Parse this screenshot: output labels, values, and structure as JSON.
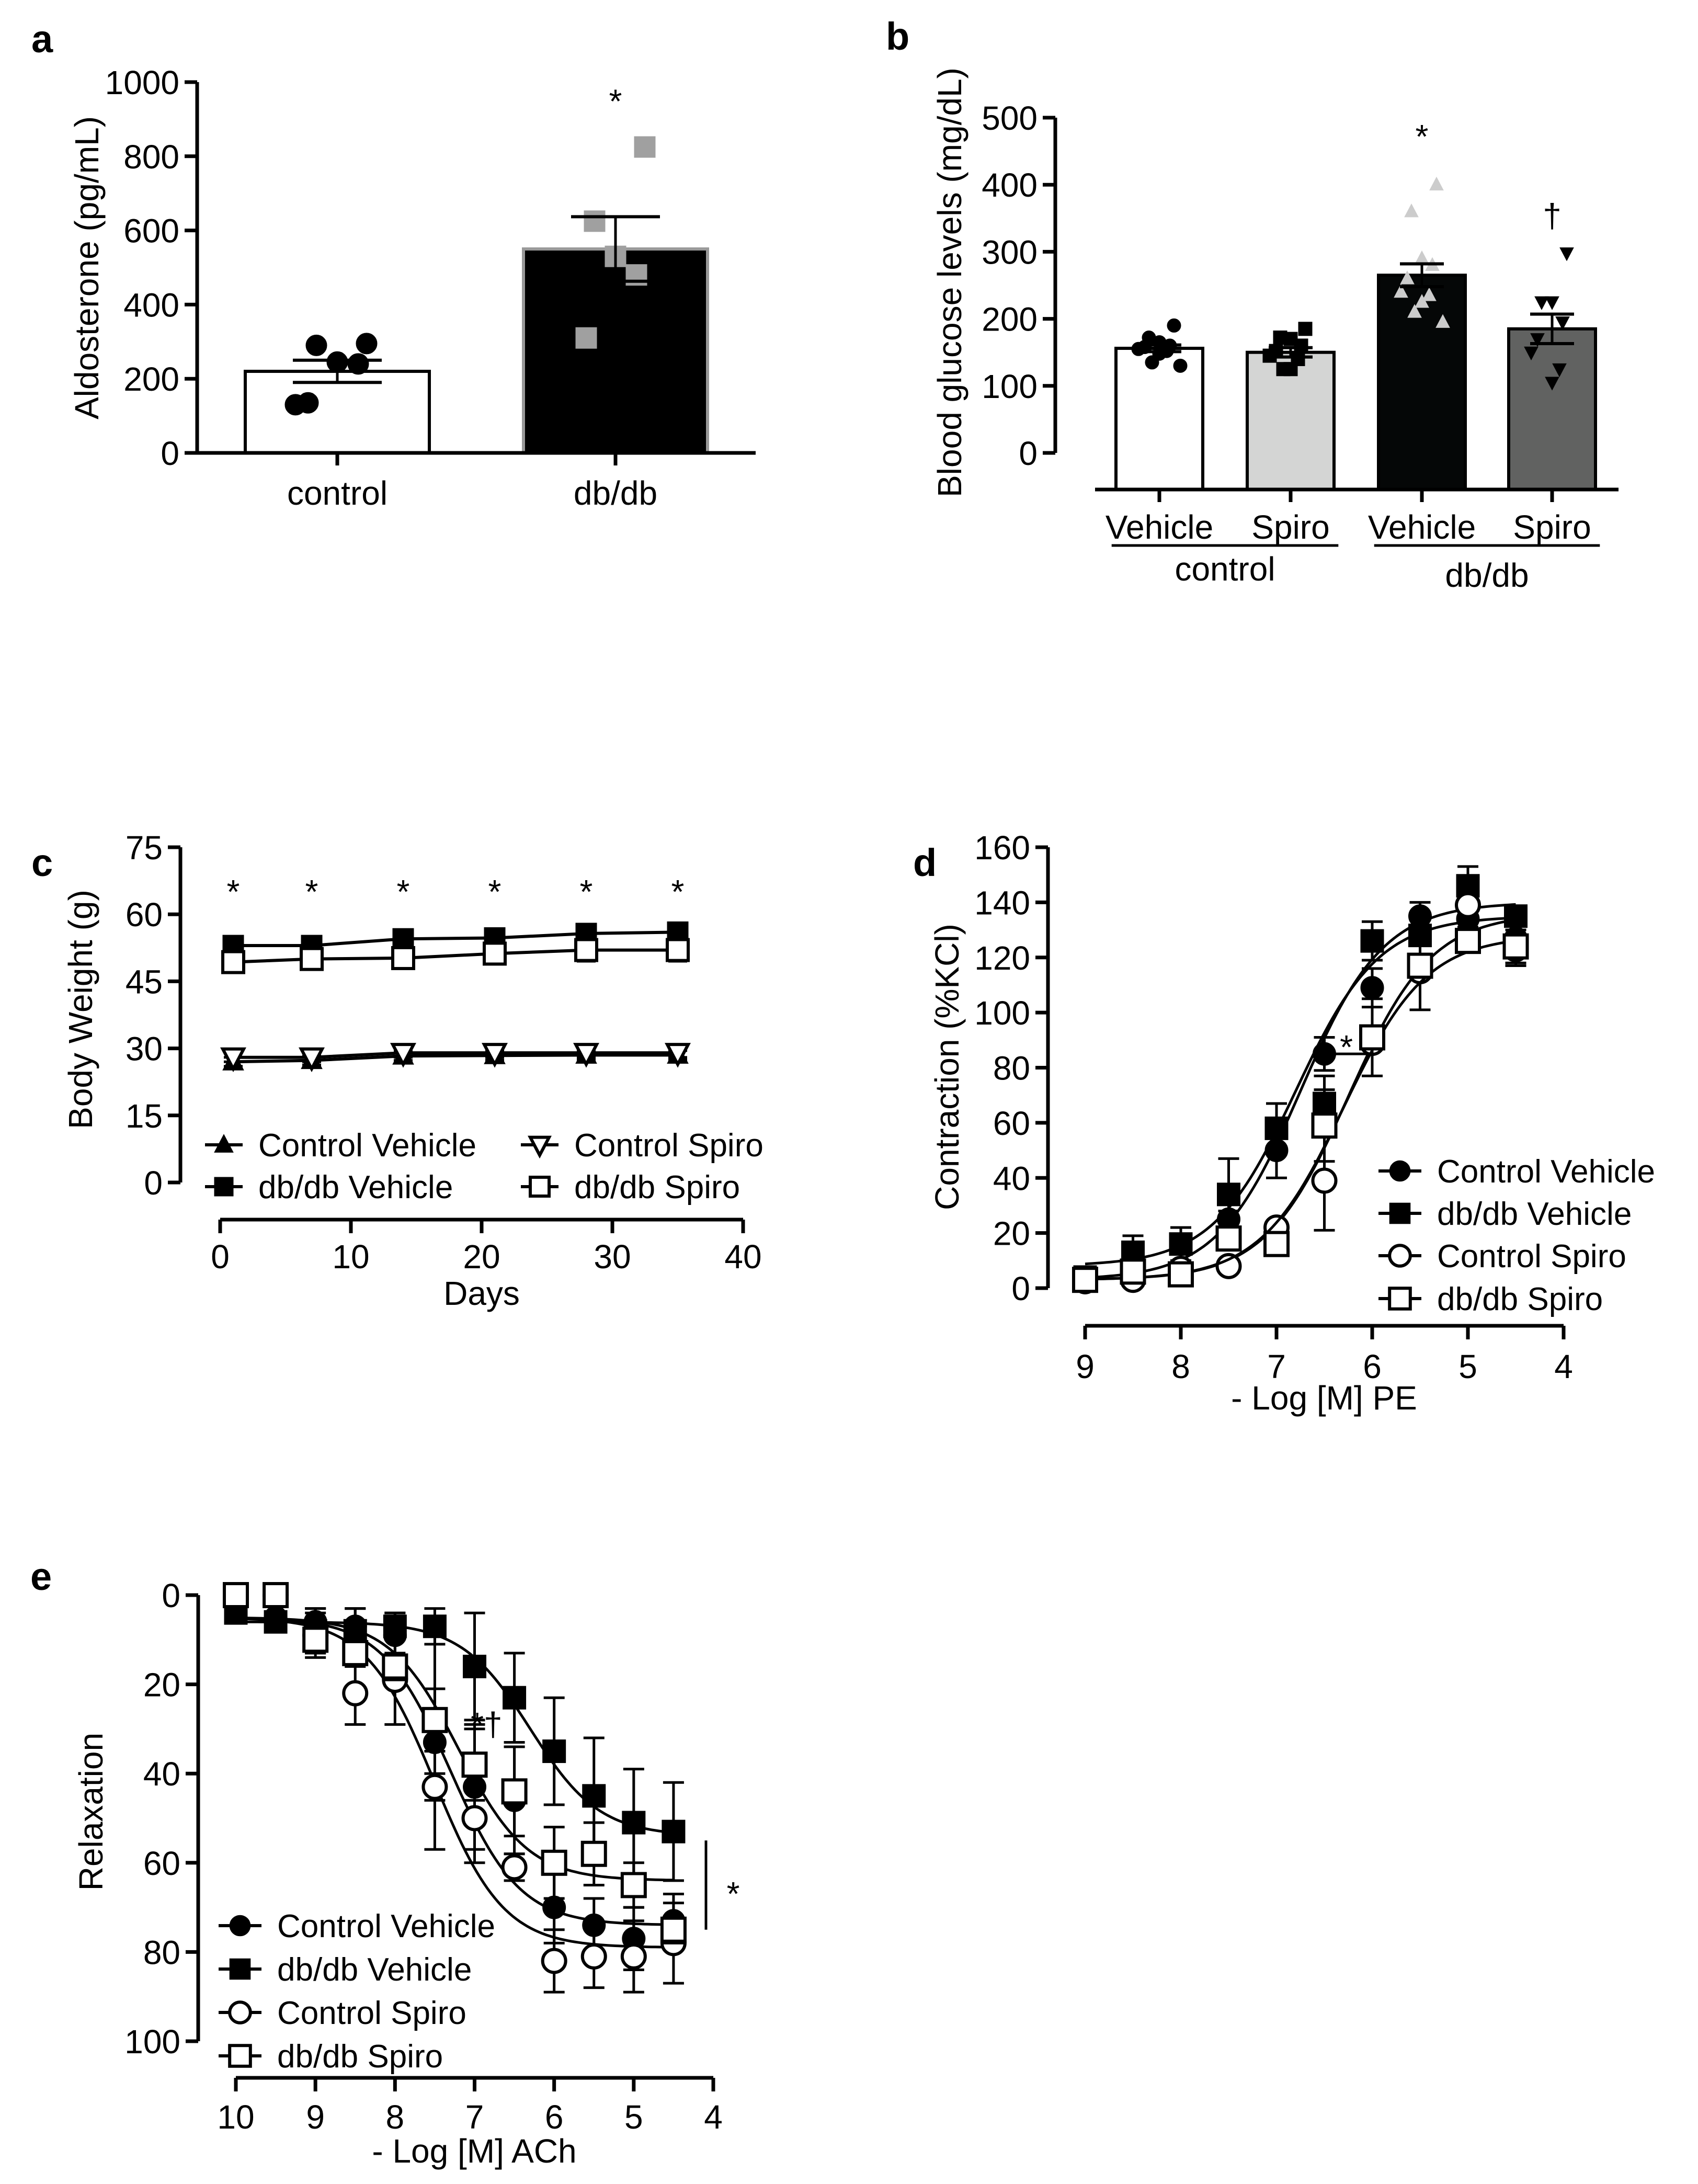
{
  "chart_data": [
    {
      "id": "a",
      "type": "bar",
      "panel_label": "a",
      "ylabel": "Aldosterone (pg/mL)",
      "ylim": [
        0,
        1000
      ],
      "yticks": [
        0,
        200,
        400,
        600,
        800,
        1000
      ],
      "categories": [
        "control",
        "db/db"
      ],
      "values": [
        220,
        550
      ],
      "sem": [
        30,
        87
      ],
      "bar_colors": [
        "#ffffff",
        "#000000"
      ],
      "bar_edge_colors": [
        "#000000",
        "#999999"
      ],
      "points": [
        [
          295,
          290,
          245,
          240,
          135,
          130
        ],
        [
          825,
          625,
          530,
          480,
          310
        ]
      ],
      "point_markers": [
        "filled-circle",
        "filled-square"
      ],
      "point_colors": [
        "#000000",
        "#a0a0a0"
      ],
      "annotations": [
        {
          "text": "*",
          "category": 1,
          "y": 960
        }
      ]
    },
    {
      "id": "b",
      "type": "bar",
      "panel_label": "b",
      "ylabel": "Blood glucose levels (mg/dL)",
      "ylim": [
        0,
        500
      ],
      "yticks": [
        0,
        100,
        200,
        300,
        400,
        500
      ],
      "categories": [
        "Vehicle",
        "Spiro",
        "Vehicle",
        "Spiro"
      ],
      "groups": [
        {
          "label": "control",
          "members": [
            0,
            1
          ]
        },
        {
          "label": "db/db",
          "members": [
            2,
            3
          ]
        }
      ],
      "values": [
        156,
        150,
        265,
        185
      ],
      "sem": [
        5,
        7,
        17,
        22
      ],
      "bar_colors": [
        "#ffffff",
        "#d4d5d4",
        "#050707",
        "#616261"
      ],
      "bar_edge_colors": [
        "#000000",
        "#000000",
        "#000000",
        "#000000"
      ],
      "points": [
        [
          190,
          172,
          165,
          160,
          158,
          155,
          152,
          148,
          135,
          130
        ],
        [
          185,
          172,
          170,
          160,
          152,
          145,
          140,
          125,
          125
        ],
        [
          400,
          360,
          290,
          280,
          260,
          240,
          235,
          225,
          210,
          195
        ],
        [
          298,
          225,
          225,
          195,
          170,
          150,
          125,
          105
        ]
      ],
      "point_markers": [
        "filled-circle",
        "filled-square",
        "filled-triangle-up",
        "filled-triangle-down"
      ],
      "point_colors": [
        "#000000",
        "#000000",
        "#cccccc",
        "#000000"
      ],
      "annotations": [
        {
          "text": "*",
          "category": 2,
          "y": 478
        },
        {
          "text": "†",
          "category": 3,
          "y": 360
        }
      ]
    },
    {
      "id": "c",
      "type": "line",
      "panel_label": "c",
      "xlabel": "Days",
      "ylabel": "Body Weight (g)",
      "xlim": [
        0,
        40
      ],
      "ylim": [
        0,
        75
      ],
      "xticks": [
        0,
        10,
        20,
        30,
        40
      ],
      "yticks": [
        0,
        15,
        30,
        45,
        60,
        75
      ],
      "x": [
        1,
        7,
        14,
        21,
        28,
        35
      ],
      "series": [
        {
          "name": "Control Vehicle",
          "marker": "filled-triangle-up",
          "values": [
            27,
            27.3,
            28.3,
            28.4,
            28.5,
            28.5
          ],
          "sem": [
            1,
            1,
            1,
            1,
            1,
            1
          ]
        },
        {
          "name": "db/db Vehicle",
          "marker": "filled-square",
          "values": [
            53,
            53,
            54.5,
            54.7,
            55.7,
            56
          ],
          "sem": [
            1.5,
            1.5,
            1.5,
            1.5,
            1.5,
            1.5
          ]
        },
        {
          "name": "Control Spiro",
          "marker": "open-triangle-down",
          "values": [
            28,
            28,
            29,
            29,
            29,
            29
          ],
          "sem": [
            1,
            1,
            1,
            1,
            1,
            1
          ]
        },
        {
          "name": "db/db Spiro",
          "marker": "open-square",
          "values": [
            49.3,
            50,
            50.2,
            51.2,
            52,
            52
          ],
          "sem": [
            1.5,
            2,
            2,
            1.5,
            2.5,
            2.5
          ]
        }
      ],
      "legend_position": "bottom, two columns",
      "annotations": [
        {
          "text": "*",
          "x": 1,
          "y": 66
        },
        {
          "text": "*",
          "x": 7,
          "y": 66
        },
        {
          "text": "*",
          "x": 14,
          "y": 66
        },
        {
          "text": "*",
          "x": 21,
          "y": 66
        },
        {
          "text": "*",
          "x": 28,
          "y": 66
        },
        {
          "text": "*",
          "x": 35,
          "y": 66
        }
      ]
    },
    {
      "id": "d",
      "type": "line",
      "panel_label": "d",
      "xlabel": "- Log [M] PE",
      "ylabel": "Contraction (%KCl)",
      "xlim": [
        9,
        4
      ],
      "ylim": [
        0,
        160
      ],
      "xticks": [
        9,
        8,
        7,
        6,
        5,
        4
      ],
      "yticks": [
        0,
        20,
        40,
        60,
        80,
        100,
        120,
        140,
        160
      ],
      "x": [
        9,
        8.5,
        8,
        7.5,
        7,
        6.5,
        6,
        5.5,
        5,
        4.5
      ],
      "series": [
        {
          "name": "Control Vehicle",
          "marker": "filled-circle",
          "values": [
            2,
            5,
            5,
            25,
            50,
            85,
            109,
            135,
            134,
            127
          ],
          "sem": [
            1,
            1,
            1,
            3,
            10,
            6,
            7,
            5,
            3,
            10
          ],
          "fit": {
            "bottom": 3,
            "top": 140,
            "pEC50": 6.75,
            "hill": 1
          }
        },
        {
          "name": "db/db Vehicle",
          "marker": "filled-square",
          "values": [
            4,
            13,
            16,
            34,
            58,
            67,
            126,
            128,
            146,
            135
          ],
          "sem": [
            1,
            6,
            6,
            13,
            9,
            10,
            7,
            3,
            7,
            2
          ],
          "fit": {
            "bottom": 8,
            "top": 135,
            "pEC50": 6.8,
            "hill": 1
          }
        },
        {
          "name": "Control Spiro",
          "marker": "open-circle",
          "values": [
            3,
            3,
            7,
            8,
            22,
            39,
            89,
            115,
            139,
            123
          ],
          "sem": [
            1,
            1,
            1,
            1,
            1,
            18,
            1,
            14,
            1,
            1
          ],
          "fit": {
            "bottom": 3,
            "top": 136,
            "pEC50": 6.25,
            "hill": 1
          }
        },
        {
          "name": "db/db Spiro",
          "marker": "open-square",
          "values": [
            3,
            6,
            5,
            18,
            16,
            59,
            91,
            117,
            126,
            124
          ],
          "sem": [
            1,
            1,
            1,
            4,
            1,
            13,
            14,
            1,
            3,
            6
          ],
          "fit": {
            "bottom": 3,
            "top": 128,
            "pEC50": 6.3,
            "hill": 1
          }
        }
      ],
      "legend_position": "lower-right",
      "annotations": [
        {
          "text": "*",
          "x": 6.27,
          "y": 89
        }
      ]
    },
    {
      "id": "e",
      "type": "line",
      "panel_label": "e",
      "xlabel": "- Log [M] ACh",
      "ylabel": "Relaxation",
      "xlim": [
        10,
        4
      ],
      "ylim": [
        0,
        100
      ],
      "y_inverted": true,
      "xticks": [
        10,
        9,
        8,
        7,
        6,
        5,
        4
      ],
      "yticks": [
        0,
        20,
        40,
        60,
        80,
        100
      ],
      "x": [
        10,
        9.5,
        9,
        8.5,
        8,
        7.5,
        7,
        6.5,
        6,
        5.5,
        5,
        4.5
      ],
      "series": [
        {
          "name": "Control Vehicle",
          "marker": "filled-circle",
          "values": [
            2,
            5,
            6,
            7,
            9,
            33,
            43,
            46,
            70,
            74,
            77,
            73
          ],
          "sem": [
            1,
            1,
            3,
            4,
            5,
            24,
            14,
            12,
            8,
            6,
            7,
            6
          ],
          "fit": {
            "bottom": 5,
            "top": 74,
            "pEC50": 7.3,
            "hill": 1
          }
        },
        {
          "name": "db/db Vehicle",
          "marker": "filled-square",
          "values": [
            4,
            6,
            8,
            8,
            7,
            7,
            16,
            23,
            35,
            45,
            51,
            53
          ],
          "sem": [
            1,
            1,
            5,
            5,
            3,
            4,
            12,
            10,
            12,
            13,
            12,
            11
          ],
          "fit": {
            "bottom": 6,
            "top": 54,
            "pEC50": 6.3,
            "hill": 1
          }
        },
        {
          "name": "Control Spiro",
          "marker": "open-circle",
          "values": [
            0,
            0,
            9,
            22,
            19,
            43,
            50,
            61,
            82,
            81,
            81,
            78
          ],
          "sem": [
            1,
            1,
            5,
            7,
            10,
            3,
            10,
            3,
            7,
            7,
            8,
            9
          ],
          "fit": {
            "bottom": 5,
            "top": 79,
            "pEC50": 7.5,
            "hill": 1
          }
        },
        {
          "name": "db/db Spiro",
          "marker": "open-square",
          "values": [
            0,
            0,
            10,
            13,
            16,
            28,
            38,
            44,
            60,
            58,
            65,
            75
          ],
          "sem": [
            1,
            1,
            3,
            3,
            3,
            7,
            8,
            10,
            8,
            7,
            5,
            3
          ],
          "fit": {
            "bottom": 5,
            "top": 64,
            "pEC50": 7.2,
            "hill": 1
          }
        }
      ],
      "legend_position": "lower-left",
      "annotations": [
        {
          "text": "*†",
          "x": 6.85,
          "y": 28
        },
        {
          "text": "*",
          "x": 3.75,
          "y": 66
        }
      ]
    }
  ]
}
